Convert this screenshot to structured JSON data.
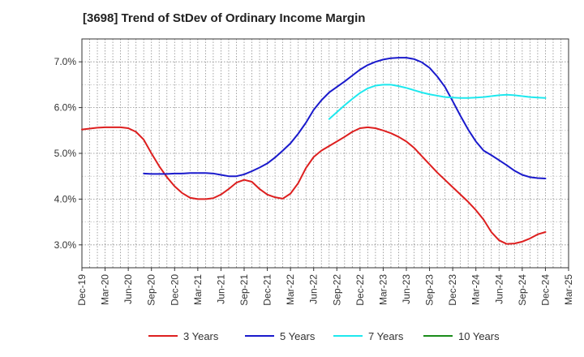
{
  "chart_data": {
    "type": "line",
    "title": "[3698]  Trend of StDev of Ordinary Income Margin",
    "xlabel": "",
    "ylabel": "",
    "x_ticks": [
      "Dec-19",
      "Mar-20",
      "Jun-20",
      "Sep-20",
      "Dec-20",
      "Mar-21",
      "Jun-21",
      "Sep-21",
      "Dec-21",
      "Mar-22",
      "Jun-22",
      "Sep-22",
      "Dec-22",
      "Mar-23",
      "Jun-23",
      "Sep-23",
      "Dec-23",
      "Mar-24",
      "Jun-24",
      "Sep-24",
      "Dec-24",
      "Mar-25"
    ],
    "y_ticks": [
      "3.0%",
      "4.0%",
      "5.0%",
      "6.0%",
      "7.0%"
    ],
    "ylim": [
      2.5,
      7.5
    ],
    "grid": true,
    "legend_position": "bottom",
    "series": [
      {
        "name": "3 Years",
        "color": "#dd1f1f",
        "points": [
          [
            "2019-12",
            5.52
          ],
          [
            "2020-01",
            5.54
          ],
          [
            "2020-02",
            5.56
          ],
          [
            "2020-03",
            5.57
          ],
          [
            "2020-04",
            5.57
          ],
          [
            "2020-05",
            5.57
          ],
          [
            "2020-06",
            5.55
          ],
          [
            "2020-07",
            5.47
          ],
          [
            "2020-08",
            5.3
          ],
          [
            "2020-09",
            5.0
          ],
          [
            "2020-10",
            4.72
          ],
          [
            "2020-11",
            4.48
          ],
          [
            "2020-12",
            4.28
          ],
          [
            "2021-01",
            4.13
          ],
          [
            "2021-02",
            4.03
          ],
          [
            "2021-03",
            4.0
          ],
          [
            "2021-04",
            4.0
          ],
          [
            "2021-05",
            4.02
          ],
          [
            "2021-06",
            4.1
          ],
          [
            "2021-07",
            4.22
          ],
          [
            "2021-08",
            4.36
          ],
          [
            "2021-09",
            4.42
          ],
          [
            "2021-10",
            4.38
          ],
          [
            "2021-11",
            4.22
          ],
          [
            "2021-12",
            4.1
          ],
          [
            "2022-01",
            4.04
          ],
          [
            "2022-02",
            4.01
          ],
          [
            "2022-03",
            4.12
          ],
          [
            "2022-04",
            4.35
          ],
          [
            "2022-05",
            4.68
          ],
          [
            "2022-06",
            4.92
          ],
          [
            "2022-07",
            5.06
          ],
          [
            "2022-08",
            5.16
          ],
          [
            "2022-09",
            5.26
          ],
          [
            "2022-10",
            5.36
          ],
          [
            "2022-11",
            5.47
          ],
          [
            "2022-12",
            5.55
          ],
          [
            "2023-01",
            5.57
          ],
          [
            "2023-02",
            5.55
          ],
          [
            "2023-03",
            5.5
          ],
          [
            "2023-04",
            5.44
          ],
          [
            "2023-05",
            5.36
          ],
          [
            "2023-06",
            5.26
          ],
          [
            "2023-07",
            5.12
          ],
          [
            "2023-08",
            4.94
          ],
          [
            "2023-09",
            4.76
          ],
          [
            "2023-10",
            4.58
          ],
          [
            "2023-11",
            4.42
          ],
          [
            "2023-12",
            4.26
          ],
          [
            "2024-01",
            4.1
          ],
          [
            "2024-02",
            3.94
          ],
          [
            "2024-03",
            3.76
          ],
          [
            "2024-04",
            3.55
          ],
          [
            "2024-05",
            3.28
          ],
          [
            "2024-06",
            3.1
          ],
          [
            "2024-07",
            3.02
          ],
          [
            "2024-08",
            3.03
          ],
          [
            "2024-09",
            3.07
          ],
          [
            "2024-10",
            3.14
          ],
          [
            "2024-11",
            3.23
          ],
          [
            "2024-12",
            3.28
          ]
        ]
      },
      {
        "name": "5 Years",
        "color": "#1a1acc",
        "points": [
          [
            "2020-08",
            4.56
          ],
          [
            "2020-09",
            4.55
          ],
          [
            "2020-10",
            4.55
          ],
          [
            "2020-11",
            4.55
          ],
          [
            "2020-12",
            4.56
          ],
          [
            "2021-01",
            4.56
          ],
          [
            "2021-02",
            4.57
          ],
          [
            "2021-03",
            4.57
          ],
          [
            "2021-04",
            4.57
          ],
          [
            "2021-05",
            4.56
          ],
          [
            "2021-06",
            4.53
          ],
          [
            "2021-07",
            4.5
          ],
          [
            "2021-08",
            4.5
          ],
          [
            "2021-09",
            4.54
          ],
          [
            "2021-10",
            4.61
          ],
          [
            "2021-11",
            4.69
          ],
          [
            "2021-12",
            4.78
          ],
          [
            "2022-01",
            4.91
          ],
          [
            "2022-02",
            5.06
          ],
          [
            "2022-03",
            5.22
          ],
          [
            "2022-04",
            5.43
          ],
          [
            "2022-05",
            5.67
          ],
          [
            "2022-06",
            5.95
          ],
          [
            "2022-07",
            6.16
          ],
          [
            "2022-08",
            6.33
          ],
          [
            "2022-09",
            6.45
          ],
          [
            "2022-10",
            6.57
          ],
          [
            "2022-11",
            6.7
          ],
          [
            "2022-12",
            6.83
          ],
          [
            "2023-01",
            6.93
          ],
          [
            "2023-02",
            7.0
          ],
          [
            "2023-03",
            7.05
          ],
          [
            "2023-04",
            7.08
          ],
          [
            "2023-05",
            7.09
          ],
          [
            "2023-06",
            7.09
          ],
          [
            "2023-07",
            7.06
          ],
          [
            "2023-08",
            6.99
          ],
          [
            "2023-09",
            6.87
          ],
          [
            "2023-10",
            6.68
          ],
          [
            "2023-11",
            6.45
          ],
          [
            "2023-12",
            6.14
          ],
          [
            "2024-01",
            5.82
          ],
          [
            "2024-02",
            5.52
          ],
          [
            "2024-03",
            5.26
          ],
          [
            "2024-04",
            5.06
          ],
          [
            "2024-05",
            4.96
          ],
          [
            "2024-06",
            4.85
          ],
          [
            "2024-07",
            4.74
          ],
          [
            "2024-08",
            4.62
          ],
          [
            "2024-09",
            4.53
          ],
          [
            "2024-10",
            4.48
          ],
          [
            "2024-11",
            4.46
          ],
          [
            "2024-12",
            4.45
          ]
        ]
      },
      {
        "name": "7 Years",
        "color": "#1ee8ee",
        "points": [
          [
            "2022-08",
            5.75
          ],
          [
            "2022-09",
            5.9
          ],
          [
            "2022-10",
            6.05
          ],
          [
            "2022-11",
            6.19
          ],
          [
            "2022-12",
            6.32
          ],
          [
            "2023-01",
            6.42
          ],
          [
            "2023-02",
            6.48
          ],
          [
            "2023-03",
            6.5
          ],
          [
            "2023-04",
            6.5
          ],
          [
            "2023-05",
            6.47
          ],
          [
            "2023-06",
            6.43
          ],
          [
            "2023-07",
            6.38
          ],
          [
            "2023-08",
            6.33
          ],
          [
            "2023-09",
            6.29
          ],
          [
            "2023-10",
            6.26
          ],
          [
            "2023-11",
            6.23
          ],
          [
            "2023-12",
            6.22
          ],
          [
            "2024-01",
            6.21
          ],
          [
            "2024-02",
            6.21
          ],
          [
            "2024-03",
            6.22
          ],
          [
            "2024-04",
            6.23
          ],
          [
            "2024-05",
            6.25
          ],
          [
            "2024-06",
            6.27
          ],
          [
            "2024-07",
            6.28
          ],
          [
            "2024-08",
            6.27
          ],
          [
            "2024-09",
            6.25
          ],
          [
            "2024-10",
            6.23
          ],
          [
            "2024-11",
            6.22
          ],
          [
            "2024-12",
            6.21
          ]
        ]
      },
      {
        "name": "10 Years",
        "color": "#1a8c1a",
        "points": []
      }
    ]
  }
}
